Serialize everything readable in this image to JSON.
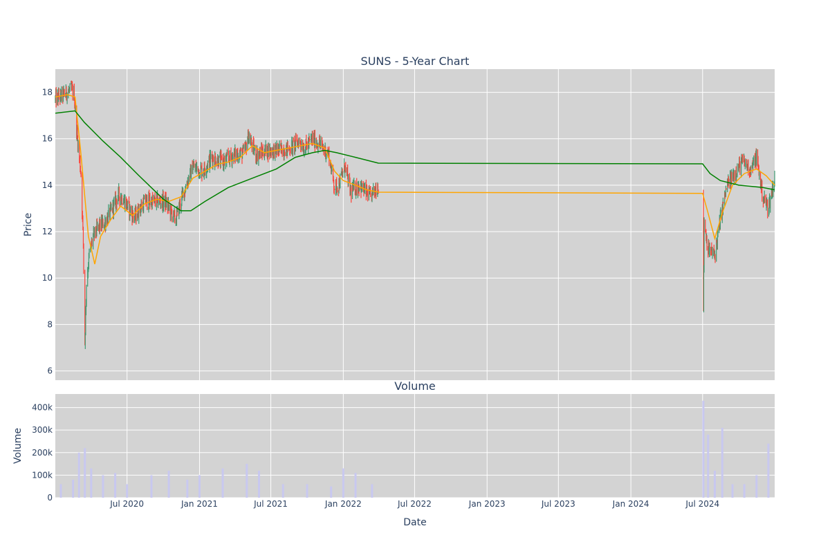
{
  "chart_data": [
    {
      "type": "candlestick",
      "title": "SUNS - 5-Year Chart",
      "ylabel": "Price",
      "ylim": [
        5.6,
        19.0
      ],
      "y_ticks": [
        6,
        8,
        10,
        12,
        14,
        16,
        18
      ],
      "grid": true,
      "plot_bg": "#d3d3d3",
      "colors": {
        "up": "#3d9970",
        "down": "#ff4136",
        "ma_short": "#ffa500",
        "ma_long": "#008000"
      },
      "series": [
        {
          "kind": "candles",
          "anchors": [
            [
              "2020-01-01",
              17.7
            ],
            [
              "2020-02-10",
              18.1
            ],
            [
              "2020-02-18",
              17.9
            ],
            [
              "2020-02-25",
              16.2
            ],
            [
              "2020-03-06",
              14.5
            ],
            [
              "2020-03-12",
              11.5
            ],
            [
              "2020-03-16",
              7.2
            ],
            [
              "2020-03-20",
              9.8
            ],
            [
              "2020-03-27",
              11.0
            ],
            [
              "2020-04-06",
              11.8
            ],
            [
              "2020-04-20",
              12.2
            ],
            [
              "2020-05-06",
              12.4
            ],
            [
              "2020-05-25",
              13.0
            ],
            [
              "2020-06-10",
              13.6
            ],
            [
              "2020-06-25",
              13.3
            ],
            [
              "2020-07-20",
              12.6
            ],
            [
              "2020-08-15",
              13.3
            ],
            [
              "2020-09-10",
              13.3
            ],
            [
              "2020-10-05",
              13.3
            ],
            [
              "2020-11-01",
              12.5
            ],
            [
              "2020-11-20",
              13.6
            ],
            [
              "2020-12-15",
              14.8
            ],
            [
              "2021-01-10",
              14.6
            ],
            [
              "2021-02-01",
              15.2
            ],
            [
              "2021-03-01",
              15.0
            ],
            [
              "2021-04-01",
              15.3
            ],
            [
              "2021-04-25",
              15.4
            ],
            [
              "2021-05-05",
              16.1
            ],
            [
              "2021-05-25",
              15.3
            ],
            [
              "2021-06-20",
              15.5
            ],
            [
              "2021-07-20",
              15.5
            ],
            [
              "2021-08-20",
              15.6
            ],
            [
              "2021-09-10",
              15.9
            ],
            [
              "2021-09-25",
              15.6
            ],
            [
              "2021-10-15",
              16.0
            ],
            [
              "2021-11-05",
              15.7
            ],
            [
              "2021-11-25",
              15.3
            ],
            [
              "2021-12-10",
              13.9
            ],
            [
              "2021-12-20",
              14.0
            ],
            [
              "2022-01-05",
              14.8
            ],
            [
              "2022-01-20",
              13.7
            ],
            [
              "2022-02-10",
              14.0
            ],
            [
              "2022-03-10",
              13.5
            ],
            [
              "2022-03-31",
              14.0
            ],
            [
              "2024-07-02",
              14.8
            ],
            [
              "2024-07-03",
              8.5
            ],
            [
              "2024-07-05",
              12.5
            ],
            [
              "2024-07-15",
              11.2
            ],
            [
              "2024-08-01",
              11.0
            ],
            [
              "2024-08-15",
              12.5
            ],
            [
              "2024-09-01",
              14.0
            ],
            [
              "2024-09-20",
              14.5
            ],
            [
              "2024-10-10",
              15.0
            ],
            [
              "2024-11-01",
              14.7
            ],
            [
              "2024-11-15",
              15.2
            ],
            [
              "2024-12-01",
              13.5
            ],
            [
              "2024-12-15",
              13.0
            ],
            [
              "2024-12-31",
              14.3
            ]
          ]
        },
        {
          "kind": "line",
          "name": "ma_short",
          "points": [
            [
              "2020-01-01",
              17.8
            ],
            [
              "2020-02-01",
              17.9
            ],
            [
              "2020-02-20",
              17.8
            ],
            [
              "2020-03-05",
              15.5
            ],
            [
              "2020-03-25",
              11.8
            ],
            [
              "2020-04-10",
              10.6
            ],
            [
              "2020-04-25",
              11.8
            ],
            [
              "2020-05-20",
              12.5
            ],
            [
              "2020-06-15",
              13.1
            ],
            [
              "2020-07-15",
              12.7
            ],
            [
              "2020-08-15",
              13.2
            ],
            [
              "2020-09-15",
              13.4
            ],
            [
              "2020-10-15",
              13.3
            ],
            [
              "2020-11-15",
              13.5
            ],
            [
              "2020-12-15",
              14.3
            ],
            [
              "2021-01-15",
              14.6
            ],
            [
              "2021-02-15",
              14.9
            ],
            [
              "2021-03-15",
              15.0
            ],
            [
              "2021-04-15",
              15.2
            ],
            [
              "2021-05-15",
              15.7
            ],
            [
              "2021-06-15",
              15.4
            ],
            [
              "2021-07-15",
              15.5
            ],
            [
              "2021-08-15",
              15.6
            ],
            [
              "2021-09-15",
              15.7
            ],
            [
              "2021-10-15",
              15.8
            ],
            [
              "2021-11-15",
              15.6
            ],
            [
              "2021-12-10",
              14.6
            ],
            [
              "2022-01-01",
              14.2
            ],
            [
              "2022-02-01",
              14.0
            ],
            [
              "2022-03-01",
              13.8
            ],
            [
              "2022-04-01",
              13.7
            ],
            [
              "2024-07-01",
              13.65
            ],
            [
              "2024-07-15",
              12.8
            ],
            [
              "2024-08-01",
              11.7
            ],
            [
              "2024-08-20",
              12.8
            ],
            [
              "2024-09-15",
              14.0
            ],
            [
              "2024-10-15",
              14.5
            ],
            [
              "2024-11-15",
              14.7
            ],
            [
              "2024-12-10",
              14.4
            ],
            [
              "2024-12-31",
              14.0
            ]
          ]
        },
        {
          "kind": "line",
          "name": "ma_long",
          "points": [
            [
              "2020-01-01",
              17.1
            ],
            [
              "2020-02-20",
              17.2
            ],
            [
              "2020-03-15",
              16.7
            ],
            [
              "2020-05-01",
              15.9
            ],
            [
              "2020-06-15",
              15.2
            ],
            [
              "2020-08-01",
              14.4
            ],
            [
              "2020-10-01",
              13.4
            ],
            [
              "2020-11-15",
              12.9
            ],
            [
              "2020-12-10",
              12.9
            ],
            [
              "2021-01-15",
              13.3
            ],
            [
              "2021-03-15",
              13.9
            ],
            [
              "2021-05-15",
              14.3
            ],
            [
              "2021-07-15",
              14.7
            ],
            [
              "2021-09-01",
              15.2
            ],
            [
              "2021-10-15",
              15.4
            ],
            [
              "2021-11-15",
              15.5
            ],
            [
              "2021-12-15",
              15.4
            ],
            [
              "2022-02-01",
              15.2
            ],
            [
              "2022-03-31",
              14.95
            ],
            [
              "2024-07-01",
              14.92
            ],
            [
              "2024-07-20",
              14.5
            ],
            [
              "2024-08-15",
              14.2
            ],
            [
              "2024-10-01",
              14.0
            ],
            [
              "2024-12-01",
              13.9
            ],
            [
              "2024-12-31",
              13.8
            ]
          ]
        }
      ]
    },
    {
      "type": "bar",
      "title": "Volume",
      "xlabel": "Date",
      "ylabel": "Volume",
      "ylim": [
        0,
        460000
      ],
      "y_ticks": [
        0,
        100000,
        200000,
        300000,
        400000
      ],
      "y_tick_labels": [
        "0",
        "100k",
        "200k",
        "300k",
        "400k"
      ],
      "x_range": [
        "2020-01-01",
        "2024-12-31"
      ],
      "x_ticks": [
        "2020-07-01",
        "2021-01-01",
        "2021-07-01",
        "2022-01-01",
        "2022-07-01",
        "2023-01-01",
        "2023-07-01",
        "2024-01-01",
        "2024-07-01"
      ],
      "x_tick_labels": [
        "Jul 2020",
        "Jan 2021",
        "Jul 2021",
        "Jan 2022",
        "Jul 2022",
        "Jan 2023",
        "Jul 2023",
        "Jan 2024",
        "Jul 2024"
      ],
      "grid": true,
      "plot_bg": "#d3d3d3",
      "colors": {
        "bar": "#c8c8f0"
      },
      "values": [
        [
          "2020-01-15",
          60000
        ],
        [
          "2020-02-15",
          80000
        ],
        [
          "2020-03-01",
          200000
        ],
        [
          "2020-03-16",
          220000
        ],
        [
          "2020-04-01",
          130000
        ],
        [
          "2020-05-01",
          100000
        ],
        [
          "2020-06-01",
          110000
        ],
        [
          "2020-07-01",
          60000
        ],
        [
          "2020-09-01",
          100000
        ],
        [
          "2020-10-15",
          120000
        ],
        [
          "2020-12-01",
          80000
        ],
        [
          "2021-01-01",
          100000
        ],
        [
          "2021-03-01",
          130000
        ],
        [
          "2021-05-01",
          150000
        ],
        [
          "2021-06-01",
          120000
        ],
        [
          "2021-08-01",
          60000
        ],
        [
          "2021-10-01",
          60000
        ],
        [
          "2021-12-01",
          50000
        ],
        [
          "2022-01-01",
          130000
        ],
        [
          "2022-02-01",
          110000
        ],
        [
          "2022-03-15",
          60000
        ],
        [
          "2024-07-03",
          430000
        ],
        [
          "2024-07-15",
          280000
        ],
        [
          "2024-08-01",
          120000
        ],
        [
          "2024-08-20",
          310000
        ],
        [
          "2024-09-15",
          60000
        ],
        [
          "2024-10-15",
          60000
        ],
        [
          "2024-11-15",
          100000
        ],
        [
          "2024-12-15",
          240000
        ]
      ]
    }
  ]
}
